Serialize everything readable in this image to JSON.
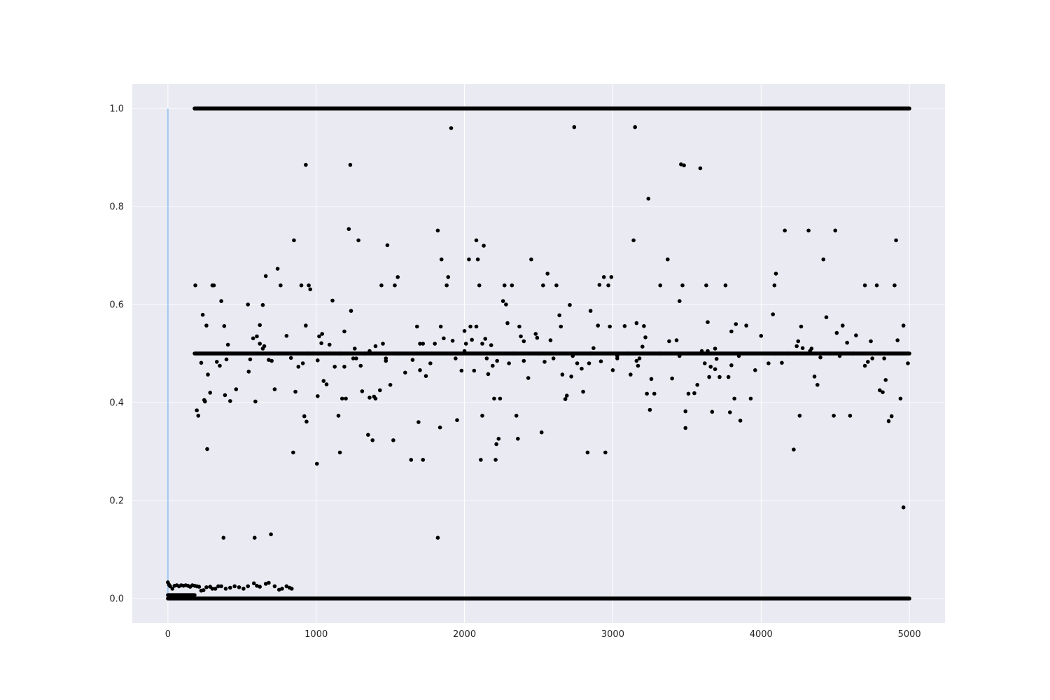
{
  "chart_data": {
    "type": "scatter",
    "title": "",
    "xlabel": "",
    "ylabel": "",
    "xlim": [
      -240,
      5240
    ],
    "ylim": [
      -0.05,
      1.05
    ],
    "xticks": [
      0,
      1000,
      2000,
      3000,
      4000,
      5000
    ],
    "yticks": [
      0.0,
      0.2,
      0.4,
      0.6,
      0.8,
      1.0
    ],
    "xtick_labels": [
      "0",
      "1000",
      "2000",
      "3000",
      "4000",
      "5000"
    ],
    "ytick_labels": [
      "0.0",
      "0.2",
      "0.4",
      "0.6",
      "0.8",
      "1.0"
    ],
    "grid": true,
    "legend": "none",
    "colors": {
      "background": "#eaeaf2",
      "grid": "#ffffff",
      "points": "#000000",
      "vline": "#a1c9f4"
    },
    "vertical_line": {
      "x": 0,
      "y_from": 0.0,
      "y_to": 1.0
    },
    "dense_bands": [
      {
        "y": 1.0,
        "x_from": 180,
        "x_to": 5000
      },
      {
        "y": 0.5,
        "x_from": 180,
        "x_to": 5000
      },
      {
        "y": 0.0,
        "x_from": 0,
        "x_to": 5000
      },
      {
        "y": 0.007,
        "x_from": 0,
        "x_to": 180
      }
    ],
    "points": [
      [
        0,
        0.033
      ],
      [
        8,
        0.028
      ],
      [
        15,
        0.025
      ],
      [
        30,
        0.02
      ],
      [
        45,
        0.026
      ],
      [
        60,
        0.027
      ],
      [
        75,
        0.025
      ],
      [
        90,
        0.027
      ],
      [
        105,
        0.026
      ],
      [
        120,
        0.027
      ],
      [
        135,
        0.026
      ],
      [
        150,
        0.024
      ],
      [
        165,
        0.027
      ],
      [
        180,
        0.026
      ],
      [
        195,
        0.025
      ],
      [
        210,
        0.024
      ],
      [
        225,
        0.016
      ],
      [
        240,
        0.017
      ],
      [
        260,
        0.023
      ],
      [
        285,
        0.024
      ],
      [
        300,
        0.02
      ],
      [
        320,
        0.02
      ],
      [
        340,
        0.025
      ],
      [
        360,
        0.025
      ],
      [
        390,
        0.02
      ],
      [
        420,
        0.022
      ],
      [
        450,
        0.025
      ],
      [
        480,
        0.023
      ],
      [
        510,
        0.02
      ],
      [
        540,
        0.025
      ],
      [
        580,
        0.031
      ],
      [
        600,
        0.026
      ],
      [
        620,
        0.024
      ],
      [
        660,
        0.03
      ],
      [
        680,
        0.032
      ],
      [
        720,
        0.025
      ],
      [
        750,
        0.018
      ],
      [
        770,
        0.02
      ],
      [
        800,
        0.025
      ],
      [
        820,
        0.022
      ],
      [
        835,
        0.02
      ],
      [
        375,
        0.124
      ],
      [
        585,
        0.124
      ],
      [
        695,
        0.131
      ],
      [
        1820,
        0.124
      ],
      [
        4960,
        0.186
      ],
      [
        185,
        0.639
      ],
      [
        195,
        0.384
      ],
      [
        205,
        0.373
      ],
      [
        225,
        0.481
      ],
      [
        235,
        0.579
      ],
      [
        245,
        0.405
      ],
      [
        250,
        0.402
      ],
      [
        260,
        0.557
      ],
      [
        265,
        0.305
      ],
      [
        270,
        0.457
      ],
      [
        285,
        0.42
      ],
      [
        300,
        0.639
      ],
      [
        310,
        0.639
      ],
      [
        330,
        0.483
      ],
      [
        350,
        0.475
      ],
      [
        360,
        0.607
      ],
      [
        380,
        0.556
      ],
      [
        385,
        0.415
      ],
      [
        395,
        0.488
      ],
      [
        405,
        0.518
      ],
      [
        420,
        0.403
      ],
      [
        460,
        0.427
      ],
      [
        540,
        0.6
      ],
      [
        545,
        0.463
      ],
      [
        555,
        0.488
      ],
      [
        575,
        0.531
      ],
      [
        590,
        0.402
      ],
      [
        600,
        0.535
      ],
      [
        620,
        0.558
      ],
      [
        640,
        0.599
      ],
      [
        660,
        0.658
      ],
      [
        680,
        0.487
      ],
      [
        720,
        0.427
      ],
      [
        740,
        0.673
      ],
      [
        760,
        0.639
      ],
      [
        800,
        0.536
      ],
      [
        830,
        0.491
      ],
      [
        845,
        0.298
      ],
      [
        850,
        0.731
      ],
      [
        860,
        0.422
      ],
      [
        880,
        0.473
      ],
      [
        900,
        0.639
      ],
      [
        910,
        0.48
      ],
      [
        920,
        0.372
      ],
      [
        930,
        0.557
      ],
      [
        935,
        0.361
      ],
      [
        945,
        0.5
      ],
      [
        950,
        0.639
      ],
      [
        960,
        0.631
      ],
      [
        1005,
        0.275
      ],
      [
        1010,
        0.413
      ],
      [
        1020,
        0.535
      ],
      [
        1035,
        0.521
      ],
      [
        1050,
        0.444
      ],
      [
        1070,
        0.437
      ],
      [
        1090,
        0.518
      ],
      [
        1110,
        0.608
      ],
      [
        1125,
        0.473
      ],
      [
        1150,
        0.373
      ],
      [
        1160,
        0.298
      ],
      [
        1175,
        0.408
      ],
      [
        1190,
        0.473
      ],
      [
        1200,
        0.408
      ],
      [
        1220,
        0.754
      ],
      [
        1235,
        0.587
      ],
      [
        1250,
        0.49
      ],
      [
        1270,
        0.49
      ],
      [
        1285,
        0.731
      ],
      [
        1300,
        0.475
      ],
      [
        1310,
        0.423
      ],
      [
        1350,
        0.334
      ],
      [
        1360,
        0.41
      ],
      [
        1380,
        0.323
      ],
      [
        1390,
        0.412
      ],
      [
        1400,
        0.408
      ],
      [
        1430,
        0.425
      ],
      [
        1440,
        0.639
      ],
      [
        1470,
        0.49
      ],
      [
        1480,
        0.721
      ],
      [
        1500,
        0.436
      ],
      [
        1520,
        0.323
      ],
      [
        1530,
        0.639
      ],
      [
        1550,
        0.656
      ],
      [
        1600,
        0.461
      ],
      [
        1640,
        0.283
      ],
      [
        1650,
        0.487
      ],
      [
        1690,
        0.36
      ],
      [
        1700,
        0.466
      ],
      [
        1720,
        0.283
      ],
      [
        1740,
        0.454
      ],
      [
        1770,
        0.48
      ],
      [
        1820,
        0.751
      ],
      [
        1835,
        0.349
      ],
      [
        1845,
        0.692
      ],
      [
        1860,
        0.531
      ],
      [
        1880,
        0.639
      ],
      [
        1890,
        0.656
      ],
      [
        1920,
        0.526
      ],
      [
        1950,
        0.364
      ],
      [
        1980,
        0.465
      ],
      [
        2000,
        0.546
      ],
      [
        2010,
        0.52
      ],
      [
        2030,
        0.692
      ],
      [
        2050,
        0.528
      ],
      [
        2065,
        0.465
      ],
      [
        2080,
        0.731
      ],
      [
        2090,
        0.692
      ],
      [
        2100,
        0.639
      ],
      [
        2110,
        0.283
      ],
      [
        2120,
        0.373
      ],
      [
        2130,
        0.72
      ],
      [
        2140,
        0.53
      ],
      [
        2160,
        0.458
      ],
      [
        2180,
        0.517
      ],
      [
        2200,
        0.408
      ],
      [
        2210,
        0.283
      ],
      [
        2215,
        0.315
      ],
      [
        2230,
        0.326
      ],
      [
        2240,
        0.408
      ],
      [
        2260,
        0.607
      ],
      [
        2270,
        0.639
      ],
      [
        2280,
        0.6
      ],
      [
        2290,
        0.562
      ],
      [
        2320,
        0.639
      ],
      [
        2350,
        0.373
      ],
      [
        2360,
        0.326
      ],
      [
        2380,
        0.535
      ],
      [
        2400,
        0.525
      ],
      [
        2430,
        0.45
      ],
      [
        2450,
        0.692
      ],
      [
        2490,
        0.532
      ],
      [
        2520,
        0.339
      ],
      [
        2530,
        0.639
      ],
      [
        2540,
        0.483
      ],
      [
        2560,
        0.663
      ],
      [
        2580,
        0.527
      ],
      [
        2620,
        0.639
      ],
      [
        2640,
        0.578
      ],
      [
        2660,
        0.457
      ],
      [
        2680,
        0.407
      ],
      [
        2690,
        0.414
      ],
      [
        2710,
        0.599
      ],
      [
        2720,
        0.453
      ],
      [
        2760,
        0.48
      ],
      [
        2790,
        0.469
      ],
      [
        2800,
        0.422
      ],
      [
        2830,
        0.298
      ],
      [
        2840,
        0.48
      ],
      [
        2850,
        0.587
      ],
      [
        2870,
        0.511
      ],
      [
        2900,
        0.557
      ],
      [
        2910,
        0.64
      ],
      [
        2920,
        0.484
      ],
      [
        2940,
        0.656
      ],
      [
        2950,
        0.298
      ],
      [
        2970,
        0.639
      ],
      [
        2990,
        0.656
      ],
      [
        3000,
        0.466
      ],
      [
        3030,
        0.49
      ],
      [
        3080,
        0.556
      ],
      [
        3100,
        0.5
      ],
      [
        3120,
        0.457
      ],
      [
        3140,
        0.731
      ],
      [
        3160,
        0.562
      ],
      [
        3170,
        0.475
      ],
      [
        3180,
        0.49
      ],
      [
        3200,
        0.514
      ],
      [
        3210,
        0.556
      ],
      [
        3220,
        0.533
      ],
      [
        3230,
        0.418
      ],
      [
        3240,
        0.816
      ],
      [
        3250,
        0.385
      ],
      [
        3260,
        0.448
      ],
      [
        3280,
        0.418
      ],
      [
        3320,
        0.639
      ],
      [
        3370,
        0.692
      ],
      [
        3380,
        0.525
      ],
      [
        3400,
        0.449
      ],
      [
        3430,
        0.527
      ],
      [
        3450,
        0.607
      ],
      [
        3470,
        0.639
      ],
      [
        3490,
        0.348
      ],
      [
        3490,
        0.382
      ],
      [
        3510,
        0.418
      ],
      [
        3550,
        0.419
      ],
      [
        3570,
        0.436
      ],
      [
        3600,
        0.505
      ],
      [
        3620,
        0.48
      ],
      [
        3630,
        0.639
      ],
      [
        3640,
        0.564
      ],
      [
        3650,
        0.452
      ],
      [
        3660,
        0.473
      ],
      [
        3670,
        0.381
      ],
      [
        3690,
        0.468
      ],
      [
        3700,
        0.489
      ],
      [
        3720,
        0.452
      ],
      [
        3760,
        0.639
      ],
      [
        3780,
        0.452
      ],
      [
        3790,
        0.38
      ],
      [
        3800,
        0.476
      ],
      [
        3820,
        0.408
      ],
      [
        3830,
        0.56
      ],
      [
        3860,
        0.363
      ],
      [
        3900,
        0.557
      ],
      [
        3930,
        0.408
      ],
      [
        3960,
        0.466
      ],
      [
        4000,
        0.536
      ],
      [
        4050,
        0.48
      ],
      [
        4090,
        0.639
      ],
      [
        4100,
        0.663
      ],
      [
        4140,
        0.481
      ],
      [
        4160,
        0.751
      ],
      [
        4220,
        0.304
      ],
      [
        4240,
        0.515
      ],
      [
        4260,
        0.373
      ],
      [
        4280,
        0.511
      ],
      [
        4320,
        0.751
      ],
      [
        4340,
        0.51
      ],
      [
        4360,
        0.453
      ],
      [
        4380,
        0.436
      ],
      [
        4400,
        0.492
      ],
      [
        4420,
        0.692
      ],
      [
        4440,
        0.574
      ],
      [
        4490,
        0.373
      ],
      [
        4500,
        0.751
      ],
      [
        4510,
        0.542
      ],
      [
        4530,
        0.495
      ],
      [
        4550,
        0.557
      ],
      [
        4580,
        0.522
      ],
      [
        4600,
        0.373
      ],
      [
        4640,
        0.537
      ],
      [
        4700,
        0.639
      ],
      [
        4720,
        0.483
      ],
      [
        4740,
        0.525
      ],
      [
        4780,
        0.639
      ],
      [
        4800,
        0.425
      ],
      [
        4820,
        0.421
      ],
      [
        4840,
        0.446
      ],
      [
        4860,
        0.362
      ],
      [
        4880,
        0.372
      ],
      [
        4900,
        0.639
      ],
      [
        4910,
        0.731
      ],
      [
        4920,
        0.527
      ],
      [
        4940,
        0.408
      ],
      [
        4960,
        0.557
      ],
      [
        4990,
        0.48
      ],
      [
        930,
        0.885
      ],
      [
        1230,
        0.885
      ],
      [
        1910,
        0.96
      ],
      [
        2740,
        0.962
      ],
      [
        3150,
        0.962
      ],
      [
        3460,
        0.886
      ],
      [
        3480,
        0.884
      ],
      [
        3590,
        0.878
      ],
      [
        620,
        0.52
      ],
      [
        640,
        0.51
      ],
      [
        650,
        0.515
      ],
      [
        700,
        0.485
      ],
      [
        1010,
        0.486
      ],
      [
        1040,
        0.54
      ],
      [
        1160,
        0.5
      ],
      [
        1190,
        0.545
      ],
      [
        1260,
        0.51
      ],
      [
        1330,
        0.5
      ],
      [
        1360,
        0.505
      ],
      [
        1400,
        0.515
      ],
      [
        1450,
        0.52
      ],
      [
        1470,
        0.485
      ],
      [
        1550,
        0.5
      ],
      [
        1680,
        0.555
      ],
      [
        1700,
        0.52
      ],
      [
        1720,
        0.52
      ],
      [
        1800,
        0.52
      ],
      [
        1840,
        0.555
      ],
      [
        1940,
        0.49
      ],
      [
        2000,
        0.505
      ],
      [
        2040,
        0.555
      ],
      [
        2080,
        0.555
      ],
      [
        2120,
        0.52
      ],
      [
        2150,
        0.49
      ],
      [
        2190,
        0.475
      ],
      [
        2220,
        0.485
      ],
      [
        2300,
        0.48
      ],
      [
        2330,
        0.5
      ],
      [
        2370,
        0.555
      ],
      [
        2400,
        0.485
      ],
      [
        2480,
        0.54
      ],
      [
        2500,
        0.5
      ],
      [
        2600,
        0.49
      ],
      [
        2650,
        0.555
      ],
      [
        2730,
        0.495
      ],
      [
        2850,
        0.5
      ],
      [
        2980,
        0.555
      ],
      [
        3030,
        0.495
      ],
      [
        3160,
        0.485
      ],
      [
        3320,
        0.5
      ],
      [
        3450,
        0.495
      ],
      [
        3640,
        0.505
      ],
      [
        3690,
        0.51
      ],
      [
        3800,
        0.545
      ],
      [
        3850,
        0.495
      ],
      [
        4080,
        0.58
      ],
      [
        4100,
        0.5
      ],
      [
        4180,
        0.5
      ],
      [
        4250,
        0.525
      ],
      [
        4270,
        0.555
      ],
      [
        4330,
        0.505
      ],
      [
        4460,
        0.5
      ],
      [
        4620,
        0.5
      ],
      [
        4700,
        0.475
      ],
      [
        4750,
        0.49
      ],
      [
        4830,
        0.49
      ]
    ]
  }
}
